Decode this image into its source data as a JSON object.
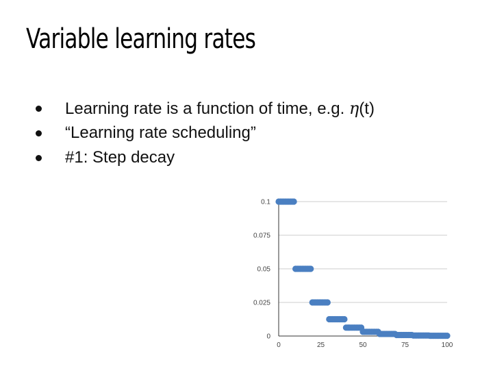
{
  "slide": {
    "title": "Variable learning rates",
    "bullets": [
      {
        "prefix": "Learning rate is a function of time, e.g. ",
        "symbol": "η",
        "suffix": "(t)"
      },
      {
        "text": "“Learning rate scheduling”"
      },
      {
        "text": "#1: Step decay"
      }
    ]
  },
  "chart_data": {
    "type": "scatter",
    "title": "",
    "xlabel": "",
    "ylabel": "",
    "xlim": [
      0,
      100
    ],
    "ylim": [
      0,
      0.1
    ],
    "grid": true,
    "legend": "none",
    "color": "#4a7fc1",
    "x_ticks": [
      0,
      25,
      50,
      75,
      100
    ],
    "x_tick_labels": [
      "0",
      "25",
      "50",
      "75",
      "100"
    ],
    "y_ticks": [
      0,
      0.025,
      0.05,
      0.075,
      0.1
    ],
    "y_tick_labels": [
      "0",
      "0.025",
      "0.05",
      "0.075",
      "0.1"
    ],
    "points": [
      [
        0,
        0.1
      ],
      [
        1,
        0.1
      ],
      [
        2,
        0.1
      ],
      [
        3,
        0.1
      ],
      [
        4,
        0.1
      ],
      [
        5,
        0.1
      ],
      [
        6,
        0.1
      ],
      [
        7,
        0.1
      ],
      [
        8,
        0.1
      ],
      [
        9,
        0.1
      ],
      [
        10,
        0.05
      ],
      [
        11,
        0.05
      ],
      [
        12,
        0.05
      ],
      [
        13,
        0.05
      ],
      [
        14,
        0.05
      ],
      [
        15,
        0.05
      ],
      [
        16,
        0.05
      ],
      [
        17,
        0.05
      ],
      [
        18,
        0.05
      ],
      [
        19,
        0.05
      ],
      [
        20,
        0.025
      ],
      [
        21,
        0.025
      ],
      [
        22,
        0.025
      ],
      [
        23,
        0.025
      ],
      [
        24,
        0.025
      ],
      [
        25,
        0.025
      ],
      [
        26,
        0.025
      ],
      [
        27,
        0.025
      ],
      [
        28,
        0.025
      ],
      [
        29,
        0.025
      ],
      [
        30,
        0.0125
      ],
      [
        31,
        0.0125
      ],
      [
        32,
        0.0125
      ],
      [
        33,
        0.0125
      ],
      [
        34,
        0.0125
      ],
      [
        35,
        0.0125
      ],
      [
        36,
        0.0125
      ],
      [
        37,
        0.0125
      ],
      [
        38,
        0.0125
      ],
      [
        39,
        0.0125
      ],
      [
        40,
        0.00625
      ],
      [
        41,
        0.00625
      ],
      [
        42,
        0.00625
      ],
      [
        43,
        0.00625
      ],
      [
        44,
        0.00625
      ],
      [
        45,
        0.00625
      ],
      [
        46,
        0.00625
      ],
      [
        47,
        0.00625
      ],
      [
        48,
        0.00625
      ],
      [
        49,
        0.00625
      ],
      [
        50,
        0.003125
      ],
      [
        51,
        0.003125
      ],
      [
        52,
        0.003125
      ],
      [
        53,
        0.003125
      ],
      [
        54,
        0.003125
      ],
      [
        55,
        0.003125
      ],
      [
        56,
        0.003125
      ],
      [
        57,
        0.003125
      ],
      [
        58,
        0.003125
      ],
      [
        59,
        0.003125
      ],
      [
        60,
        0.0015625
      ],
      [
        61,
        0.0015625
      ],
      [
        62,
        0.0015625
      ],
      [
        63,
        0.0015625
      ],
      [
        64,
        0.0015625
      ],
      [
        65,
        0.0015625
      ],
      [
        66,
        0.0015625
      ],
      [
        67,
        0.0015625
      ],
      [
        68,
        0.0015625
      ],
      [
        69,
        0.0015625
      ],
      [
        70,
        0.00078
      ],
      [
        71,
        0.00078
      ],
      [
        72,
        0.00078
      ],
      [
        73,
        0.00078
      ],
      [
        74,
        0.00078
      ],
      [
        75,
        0.00078
      ],
      [
        76,
        0.00078
      ],
      [
        77,
        0.00078
      ],
      [
        78,
        0.00078
      ],
      [
        79,
        0.00078
      ],
      [
        80,
        0.00039
      ],
      [
        81,
        0.00039
      ],
      [
        82,
        0.00039
      ],
      [
        83,
        0.00039
      ],
      [
        84,
        0.00039
      ],
      [
        85,
        0.00039
      ],
      [
        86,
        0.00039
      ],
      [
        87,
        0.00039
      ],
      [
        88,
        0.00039
      ],
      [
        89,
        0.00039
      ],
      [
        90,
        0.0002
      ],
      [
        91,
        0.0002
      ],
      [
        92,
        0.0002
      ],
      [
        93,
        0.0002
      ],
      [
        94,
        0.0002
      ],
      [
        95,
        0.0002
      ],
      [
        96,
        0.0002
      ],
      [
        97,
        0.0002
      ],
      [
        98,
        0.0002
      ],
      [
        99,
        0.0002
      ],
      [
        100,
        0.0002
      ]
    ]
  }
}
